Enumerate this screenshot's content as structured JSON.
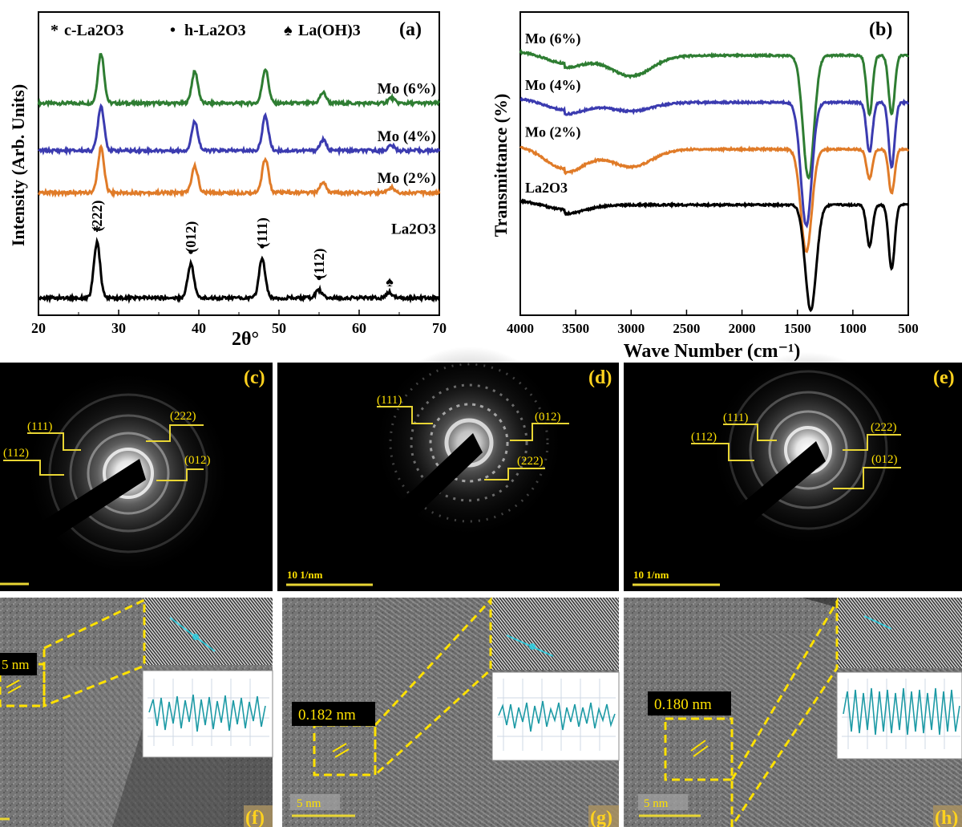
{
  "colors": {
    "green": "#2e7d32",
    "blue": "#3b3bb0",
    "orange": "#e07b28",
    "black": "#000000",
    "label_yellow": "#ffd21e",
    "overlay_yellow": "#ffe100",
    "line_yellow": "#e8d534"
  },
  "panel_a": {
    "label": "(a)",
    "legend": [
      {
        "symbol": "*",
        "text": "c-La2O3"
      },
      {
        "symbol": "•",
        "text": "h-La2O3"
      },
      {
        "symbol": "♠",
        "text": "La(OH)3"
      }
    ],
    "peak_markers": [
      {
        "hkl": "(222)",
        "symbol": "*"
      },
      {
        "hkl": "(012)",
        "symbol": "•"
      },
      {
        "hkl": "(111)",
        "symbol": "•"
      },
      {
        "hkl": "(112)",
        "symbol": "•"
      },
      {
        "hkl": "",
        "symbol": "♠"
      }
    ],
    "y_label": "Intensity (Arb. Units)",
    "x_label": "2θ°"
  },
  "panel_b": {
    "label": "(b)",
    "y_label": "Transmittance (%)",
    "x_label": "Wave Number (cm⁻¹)"
  },
  "chart_data": [
    {
      "type": "line",
      "panel": "(a)",
      "xlabel": "2θ°",
      "ylabel": "Intensity (Arb. Units)",
      "xlim": [
        20,
        70
      ],
      "x_ticks": [
        20,
        30,
        40,
        50,
        60,
        70
      ],
      "y_ticks_shown": false,
      "grid": false,
      "series": [
        {
          "name": "Mo (6%)",
          "color": "#2e7d32",
          "baseline": 0.76,
          "peaks": [
            {
              "x": 27.8,
              "h": 0.19
            },
            {
              "x": 39.5,
              "h": 0.12
            },
            {
              "x": 48.3,
              "h": 0.13
            },
            {
              "x": 55.5,
              "h": 0.04
            },
            {
              "x": 64.0,
              "h": 0.02
            }
          ]
        },
        {
          "name": "Mo (4%)",
          "color": "#3b3bb0",
          "baseline": 0.58,
          "peaks": [
            {
              "x": 27.8,
              "h": 0.17
            },
            {
              "x": 39.5,
              "h": 0.11
            },
            {
              "x": 48.3,
              "h": 0.13
            },
            {
              "x": 55.5,
              "h": 0.04
            },
            {
              "x": 64.0,
              "h": 0.02
            }
          ]
        },
        {
          "name": "Mo (2%)",
          "color": "#e07b28",
          "baseline": 0.42,
          "peaks": [
            {
              "x": 27.8,
              "h": 0.17
            },
            {
              "x": 39.5,
              "h": 0.1
            },
            {
              "x": 48.3,
              "h": 0.13
            },
            {
              "x": 55.5,
              "h": 0.04
            },
            {
              "x": 64.0,
              "h": 0.02
            }
          ]
        },
        {
          "name": "La2O3",
          "color": "#000000",
          "baseline": 0.02,
          "peaks": [
            {
              "x": 27.3,
              "h": 0.21
            },
            {
              "x": 39.0,
              "h": 0.13
            },
            {
              "x": 47.9,
              "h": 0.15
            },
            {
              "x": 55.0,
              "h": 0.03
            },
            {
              "x": 63.8,
              "h": 0.02
            }
          ]
        }
      ]
    },
    {
      "type": "line",
      "panel": "(b)",
      "xlabel": "Wave Number (cm⁻¹)",
      "ylabel": "Transmittance (%)",
      "xlim": [
        4000,
        500
      ],
      "x_ticks": [
        4000,
        3500,
        3000,
        2500,
        2000,
        1500,
        1000,
        500
      ],
      "y_ticks_shown": false,
      "grid": false,
      "series": [
        {
          "name": "Mo (6%)",
          "color": "#2e7d32",
          "baseline": 0.88,
          "dips": [
            {
              "x": 3600,
              "d": 0.04
            },
            {
              "x": 3000,
              "d": 0.07
            },
            {
              "x": 1400,
              "d": 0.42
            },
            {
              "x": 850,
              "d": 0.2
            },
            {
              "x": 650,
              "d": 0.2
            }
          ]
        },
        {
          "name": "Mo (4%)",
          "color": "#3b3bb0",
          "baseline": 0.72,
          "dips": [
            {
              "x": 3600,
              "d": 0.04
            },
            {
              "x": 3000,
              "d": 0.03
            },
            {
              "x": 1420,
              "d": 0.42
            },
            {
              "x": 850,
              "d": 0.17
            },
            {
              "x": 650,
              "d": 0.22
            }
          ]
        },
        {
          "name": "Mo (2%)",
          "color": "#e07b28",
          "baseline": 0.56,
          "dips": [
            {
              "x": 3600,
              "d": 0.08
            },
            {
              "x": 3000,
              "d": 0.06
            },
            {
              "x": 1420,
              "d": 0.35
            },
            {
              "x": 850,
              "d": 0.1
            },
            {
              "x": 650,
              "d": 0.15
            }
          ]
        },
        {
          "name": "La2O3",
          "color": "#000000",
          "baseline": 0.37,
          "dips": [
            {
              "x": 3600,
              "d": 0.03
            },
            {
              "x": 1380,
              "d": 0.36
            },
            {
              "x": 850,
              "d": 0.14
            },
            {
              "x": 650,
              "d": 0.22
            }
          ]
        }
      ]
    }
  ],
  "saed": {
    "c": {
      "label": "(c)",
      "scale_text": "",
      "rings": [
        "(111)",
        "(112)",
        "(222)",
        "(012)"
      ]
    },
    "d": {
      "label": "(d)",
      "scale_text": "10 1/nm",
      "rings": [
        "(111)",
        "(012)",
        "(222)"
      ]
    },
    "e": {
      "label": "(e)",
      "scale_text": "10 1/nm",
      "rings": [
        "(111)",
        "(112)",
        "(222)",
        "(012)"
      ]
    }
  },
  "hrtem": {
    "f": {
      "label": "(f)",
      "spacing": "5 nm",
      "scale_text": ""
    },
    "g": {
      "label": "(g)",
      "spacing": "0.182 nm",
      "scale_text": "5 nm"
    },
    "h": {
      "label": "(h)",
      "spacing": "0.180 nm",
      "scale_text": "5 nm"
    }
  }
}
